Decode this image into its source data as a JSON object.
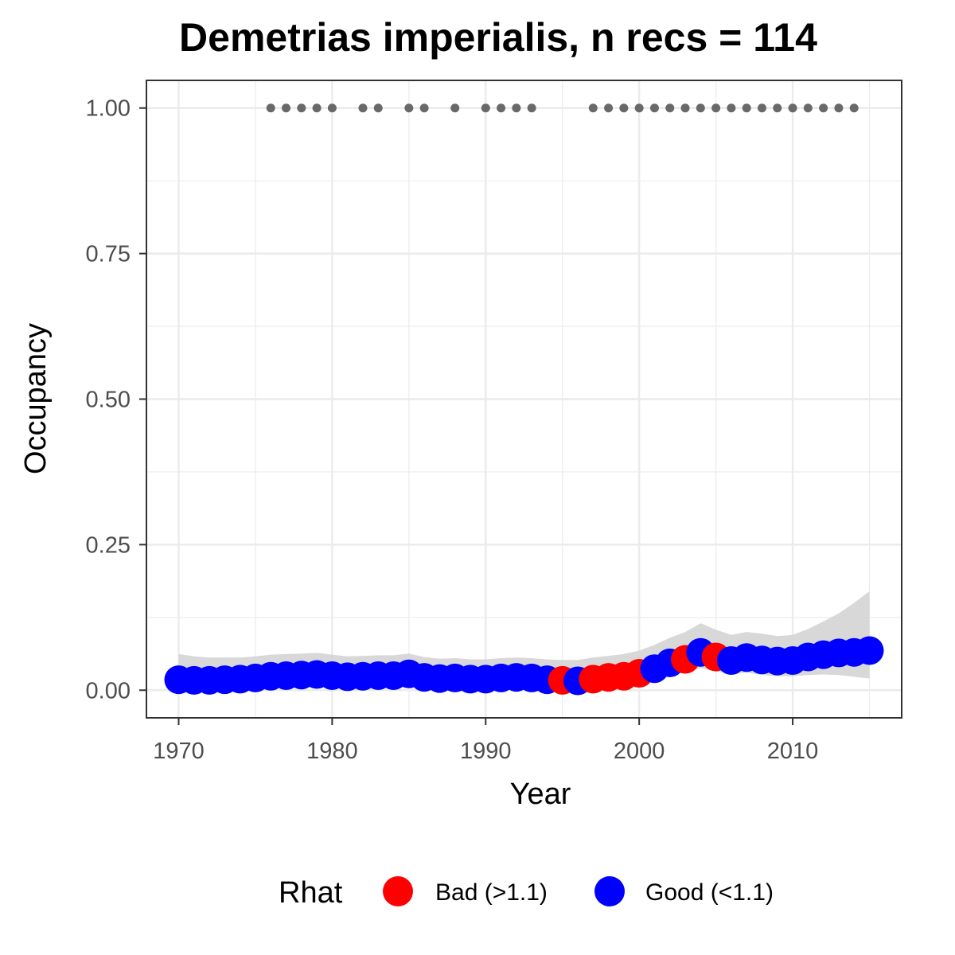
{
  "chart_data": {
    "type": "scatter",
    "title": "Demetrias imperialis, n recs = 114",
    "xlabel": "Year",
    "ylabel": "Occupancy",
    "xlim": [
      1967.9,
      2017.1
    ],
    "ylim": [
      -0.0475,
      1.0475
    ],
    "x_ticks": [
      1970,
      1980,
      1990,
      2000,
      2010
    ],
    "x_tick_labels": [
      "1970",
      "1980",
      "1990",
      "2000",
      "2010"
    ],
    "y_ticks": [
      0,
      0.25,
      0.5,
      0.75,
      1
    ],
    "y_tick_labels": [
      "0.00",
      "0.25",
      "0.50",
      "0.75",
      "1.00"
    ],
    "grid": true,
    "legend": {
      "title": "Rhat",
      "position": "bottom",
      "items": [
        {
          "label": "Bad (>1.1)",
          "color": "#ff0000"
        },
        {
          "label": "Good (<1.1)",
          "color": "#0000ff"
        }
      ]
    },
    "colors": {
      "Bad": "#ff0000",
      "Good": "#0000ff",
      "records": "#696969",
      "ribbon": "#d4d4d4"
    },
    "records_year": [
      1976,
      1977,
      1978,
      1979,
      1980,
      1982,
      1983,
      1985,
      1986,
      1988,
      1990,
      1991,
      1992,
      1993,
      1997,
      1998,
      1999,
      2000,
      2001,
      2002,
      2003,
      2004,
      2005,
      2006,
      2007,
      2008,
      2009,
      2010,
      2011,
      2012,
      2013,
      2014
    ],
    "records_value": 1.0,
    "series": [
      {
        "name": "Occupancy",
        "x": [
          1970,
          1971,
          1972,
          1973,
          1974,
          1975,
          1976,
          1977,
          1978,
          1979,
          1980,
          1981,
          1982,
          1983,
          1984,
          1985,
          1986,
          1987,
          1988,
          1989,
          1990,
          1991,
          1992,
          1993,
          1994,
          1995,
          1996,
          1997,
          1998,
          1999,
          2000,
          2001,
          2002,
          2003,
          2004,
          2005,
          2006,
          2007,
          2008,
          2009,
          2010,
          2011,
          2012,
          2013,
          2014,
          2015
        ],
        "y": [
          0.018,
          0.017,
          0.017,
          0.018,
          0.019,
          0.021,
          0.024,
          0.025,
          0.026,
          0.027,
          0.025,
          0.023,
          0.024,
          0.025,
          0.025,
          0.028,
          0.022,
          0.02,
          0.021,
          0.019,
          0.019,
          0.021,
          0.022,
          0.021,
          0.018,
          0.017,
          0.016,
          0.019,
          0.022,
          0.024,
          0.029,
          0.037,
          0.047,
          0.053,
          0.065,
          0.057,
          0.051,
          0.056,
          0.052,
          0.05,
          0.051,
          0.057,
          0.061,
          0.064,
          0.065,
          0.068
        ],
        "rhat": [
          "Good",
          "Good",
          "Good",
          "Good",
          "Good",
          "Good",
          "Good",
          "Good",
          "Good",
          "Good",
          "Good",
          "Good",
          "Good",
          "Good",
          "Good",
          "Good",
          "Good",
          "Good",
          "Good",
          "Good",
          "Good",
          "Good",
          "Good",
          "Good",
          "Good",
          "Bad",
          "Good",
          "Bad",
          "Bad",
          "Bad",
          "Bad",
          "Good",
          "Good",
          "Bad",
          "Good",
          "Bad",
          "Good",
          "Good",
          "Good",
          "Good",
          "Good",
          "Good",
          "Good",
          "Good",
          "Good",
          "Good"
        ],
        "lower": [
          0.005,
          0.005,
          0.005,
          0.005,
          0.006,
          0.007,
          0.009,
          0.01,
          0.011,
          0.012,
          0.011,
          0.01,
          0.011,
          0.012,
          0.012,
          0.013,
          0.01,
          0.008,
          0.009,
          0.008,
          0.008,
          0.009,
          0.01,
          0.009,
          0.007,
          0.006,
          0.005,
          0.007,
          0.009,
          0.011,
          0.014,
          0.019,
          0.026,
          0.031,
          0.038,
          0.032,
          0.028,
          0.03,
          0.026,
          0.024,
          0.024,
          0.026,
          0.027,
          0.026,
          0.023,
          0.02
        ],
        "upper": [
          0.062,
          0.058,
          0.056,
          0.056,
          0.056,
          0.058,
          0.061,
          0.062,
          0.063,
          0.064,
          0.061,
          0.058,
          0.059,
          0.06,
          0.06,
          0.063,
          0.057,
          0.054,
          0.055,
          0.053,
          0.053,
          0.055,
          0.056,
          0.055,
          0.053,
          0.052,
          0.052,
          0.056,
          0.059,
          0.062,
          0.068,
          0.078,
          0.09,
          0.1,
          0.115,
          0.104,
          0.095,
          0.1,
          0.097,
          0.093,
          0.095,
          0.105,
          0.118,
          0.132,
          0.15,
          0.17
        ]
      }
    ]
  }
}
